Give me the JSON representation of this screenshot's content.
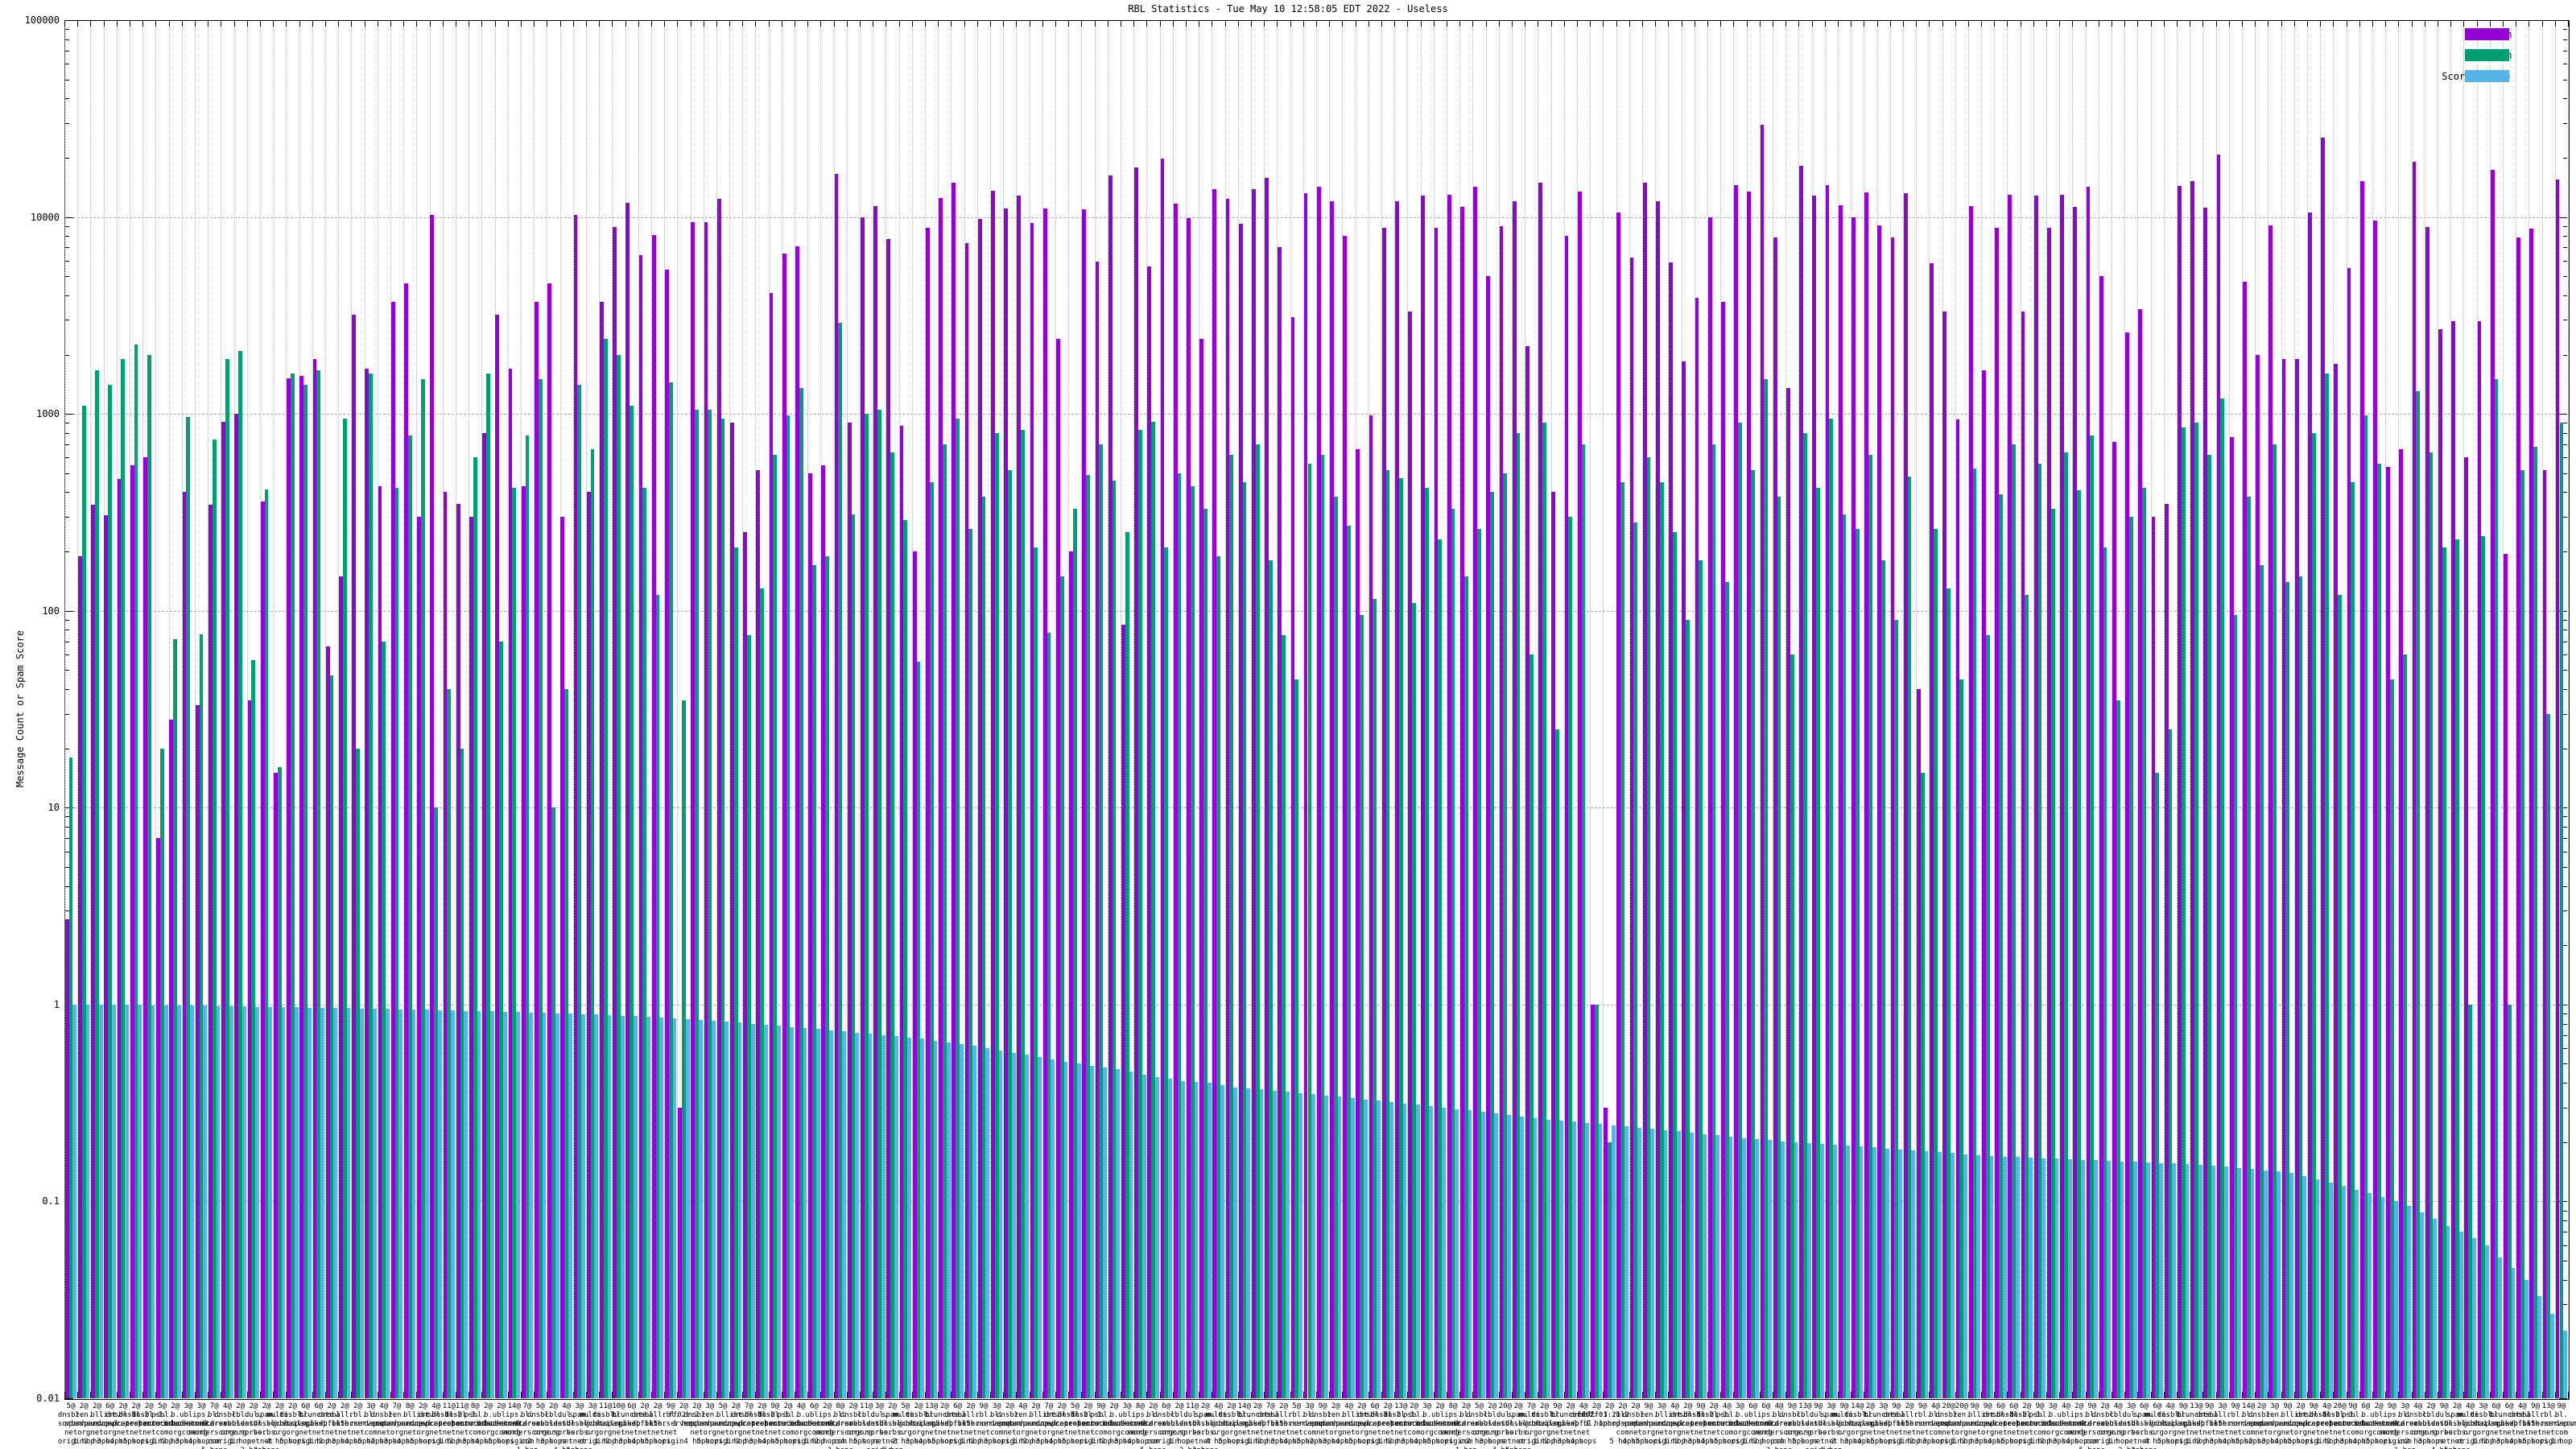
{
  "title": "RBL Statistics - Tue May 10 12:58:05 EDT 2022 - Useless",
  "y_axis": {
    "label": "Message Count or Spam Score",
    "tick_labels": [
      "100000",
      "10000",
      "1000",
      "100",
      "10",
      "1",
      "0.1",
      "0.01"
    ],
    "scale": "log",
    "min": 0.01,
    "max": 100000
  },
  "legend": {
    "position": "top-right",
    "items": [
      {
        "label": "Not Spam",
        "color": "#9400d3"
      },
      {
        "label": "Spam",
        "color": "#009e73"
      },
      {
        "label": "Score (0..1)",
        "color": "#56b4e9"
      }
    ]
  },
  "chart_data": {
    "type": "bar",
    "grid": true,
    "legend_position": "top-right",
    "ylog": true,
    "ylim": [
      0.01,
      100000
    ],
    "ylabel": "Message Count or Spam Score",
    "categories": [
      "5@dnsbl.sorbs.net origin",
      "2@zen.spamhaus.org 1 hop",
      "2@bl.spamcop.net 2 hops",
      "6@list.dnswl.org 3 hops",
      "2@dnsbl-1.uceprotect.net 4 hops",
      "2@dnsbl-2.uceprotect.net 5 hops",
      "2@dnsbl-3.uceprotect.net origin",
      "5@psbl.surriel.com 1 hop",
      "2@b.barracudacentral.org 2 hops",
      "3@ubl.unsubscore.com 3 hops",
      "3@ips.backscatterer.org 4 hops",
      "7@bl.score.senderscore.com 5 hops",
      "4@dnsbl.dronebl.org origin",
      "2@cbl.abuseat.org 1 hop",
      "2@dul.dnsbl.sorbs.net 2 hops",
      "2@spam.dnsbl.sorbs.net 3 hops",
      "2@multi.surbl.org 4 hops",
      "2@dnsbl.justspam.org 5 hops",
      "6@bl.mailspike.net origin",
      "6@truncate.gbudb.net 1 hop",
      "2@dnsbl.spfbl.net 2 hops",
      "2@all.s5h.net 3 hops",
      "2@rbl.interserver.net 4 hops",
      "3@bl.nordspam.com 5 hops",
      "4@dnsbl.sorbs.net 2 hops",
      "7@zen.spamhaus.org 3 hops",
      "8@bl.spamcop.net 4 hops",
      "2@list.dnswl.org 5 hops",
      "4@dnsbl-1.uceprotect.net origin",
      "11@dnsbl-2.uceprotect.net 1 hop",
      "11@dnsbl-3.uceprotect.net 2 hops",
      "8@psbl.surriel.com 3 hops",
      "2@b.barracudacentral.org 4 hops",
      "2@ubl.unsubscore.com 5 hops",
      "14@ips.backscatterer.org origin",
      "7@bl.score.senderscore.com 1 hop",
      "5@dnsbl.dronebl.org 2 hops",
      "2@cbl.abuseat.org 3 hops",
      "4@dul.dnsbl.sorbs.net 4 hops",
      "3@spam.dnsbl.sorbs.net 5 hops",
      "3@multi.surbl.org origin",
      "11@dnsbl.justspam.org 1 hop",
      "10@bl.mailspike.net 2 hops",
      "6@truncate.gbudb.net 3 hops",
      "2@dnsbl.spfbl.net 4 hops",
      "2@all.s5h.net 5 hops",
      "9@rbl.interserver.net origin",
      "2@ff02::2 1 hop",
      "2@dnsbl.sorbs.net 4 hops",
      "3@zen.spamhaus.org 5 hops",
      "5@bl.spamcop.net origin",
      "2@list.dnswl.org 1 hop",
      "7@dnsbl-1.uceprotect.net 2 hops",
      "2@dnsbl-2.uceprotect.net 3 hops",
      "9@dnsbl-3.uceprotect.net 4 hops",
      "2@psbl.surriel.com 5 hops",
      "4@b.barracudacentral.org origin",
      "6@ubl.unsubscore.com 1 hop",
      "2@ips.backscatterer.org 2 hops",
      "8@bl.score.senderscore.com 3 hops",
      "2@dnsbl.dronebl.org 4 hops",
      "11@cbl.abuseat.org 5 hops",
      "3@dul.dnsbl.sorbs.net origin",
      "2@spam.dnsbl.sorbs.net 1 hop",
      "5@multi.surbl.org 2 hops",
      "2@dnsbl.justspam.org 3 hops",
      "13@bl.mailspike.net 4 hops",
      "2@truncate.gbudb.net 5 hops",
      "6@dnsbl.spfbl.net origin",
      "2@all.s5h.net 1 hop",
      "9@rbl.interserver.net 2 hops",
      "3@bl.nordspam.com 3 hops",
      "2@dnsbl.sorbs.net origin",
      "4@zen.spamhaus.org 1 hop",
      "2@bl.spamcop.net 2 hops",
      "7@list.dnswl.org 3 hops",
      "2@dnsbl-1.uceprotect.net 4 hops",
      "5@dnsbl-2.uceprotect.net 5 hops",
      "2@dnsbl-3.uceprotect.net origin",
      "9@psbl.surriel.com 1 hop",
      "2@b.barracudacentral.org 2 hops",
      "3@ubl.unsubscore.com 3 hops",
      "8@ips.backscatterer.org 4 hops",
      "2@bl.score.senderscore.com 5 hops",
      "6@dnsbl.dronebl.org origin",
      "2@cbl.abuseat.org 1 hop",
      "11@dul.dnsbl.sorbs.net 2 hops",
      "2@spam.dnsbl.sorbs.net 3 hops",
      "4@multi.surbl.org 4 hops",
      "2@dnsbl.justspam.org 5 hops",
      "14@bl.mailspike.net origin",
      "2@truncate.gbudb.net 1 hop",
      "7@dnsbl.spfbl.net 2 hops",
      "2@all.s5h.net 3 hops",
      "5@rbl.interserver.net 4 hops",
      "3@bl.nordspam.com 5 hops",
      "9@dnsbl.sorbs.net 2 hops",
      "2@zen.spamhaus.org 3 hops",
      "4@bl.spamcop.net 4 hops",
      "2@list.dnswl.org 5 hops",
      "6@dnsbl-1.uceprotect.net origin",
      "2@dnsbl-2.uceprotect.net 1 hop",
      "13@dnsbl-3.uceprotect.net 2 hops",
      "2@psbl.surriel.com 3 hops",
      "3@b.barracudacentral.org 4 hops",
      "2@ubl.unsubscore.com 5 hops",
      "8@ips.backscatterer.org origin",
      "2@bl.score.senderscore.com 1 hop",
      "5@dnsbl.dronebl.org 2 hops",
      "2@cbl.abuseat.org 3 hops",
      "20@dul.dnsbl.sorbs.net 4 hops",
      "2@spam.dnsbl.sorbs.net 5 hops",
      "7@multi.surbl.org origin",
      "2@dnsbl.justspam.org 1 hop",
      "9@bl.mailspike.net 2 hops",
      "2@truncate.gbudb.net 3 hops",
      "4@dnsbl.spfbl.net 4 hops",
      "2@ff02::1:2 1 hop",
      "2@ff03::1:2 1 hop",
      "2@bl.nordspam.com 5 hops",
      "2@dnsbl.sorbs.net 4 hops",
      "9@zen.spamhaus.org 5 hops",
      "3@bl.spamcop.net origin",
      "4@list.dnswl.org 1 hop",
      "2@dnsbl-1.uceprotect.net 2 hops",
      "9@dnsbl-2.uceprotect.net 3 hops",
      "2@dnsbl-3.uceprotect.net 4 hops",
      "4@psbl.surriel.com 5 hops",
      "3@b.barracudacentral.org origin",
      "6@ubl.unsubscore.com 1 hop",
      "6@ips.backscatterer.org 2 hops",
      "4@bl.score.senderscore.com 3 hops",
      "9@dnsbl.dronebl.org 4 hops",
      "13@cbl.abuseat.org 5 hops",
      "9@dul.dnsbl.sorbs.net origin",
      "3@spam.dnsbl.sorbs.net 1 hop",
      "9@multi.surbl.org 2 hops",
      "14@dnsbl.justspam.org 3 hops",
      "2@bl.mailspike.net 4 hops",
      "3@truncate.gbudb.net 5 hops",
      "9@dnsbl.spfbl.net origin",
      "2@all.s5h.net 1 hop",
      "9@rbl.interserver.net 2 hops",
      "4@bl.nordspam.com 3 hops",
      "20@dnsbl.sorbs.net origin",
      "20@zen.spamhaus.org 1 hop",
      "9@bl.spamcop.net 2 hops",
      "9@list.dnswl.org 3 hops",
      "6@dnsbl-1.uceprotect.net 4 hops",
      "6@dnsbl-2.uceprotect.net 5 hops",
      "2@dnsbl-3.uceprotect.net origin",
      "9@psbl.surriel.com 1 hop",
      "3@b.barracudacentral.org 2 hops",
      "4@ubl.unsubscore.com 3 hops",
      "2@ips.backscatterer.org 4 hops",
      "9@bl.score.senderscore.com 5 hops",
      "2@dnsbl.dronebl.org origin",
      "4@cbl.abuseat.org 1 hop",
      "3@dul.dnsbl.sorbs.net 2 hops",
      "6@spam.dnsbl.sorbs.net 3 hops",
      "6@multi.surbl.org 4 hops",
      "4@dnsbl.justspam.org 5 hops",
      "9@bl.mailspike.net origin",
      "13@truncate.gbudb.net 1 hop",
      "9@dnsbl.spfbl.net 2 hops",
      "3@all.s5h.net 3 hops",
      "9@rbl.interserver.net 4 hops",
      "14@bl.nordspam.com 5 hops",
      "2@dnsbl.sorbs.net 2 hops",
      "3@zen.spamhaus.org 3 hops",
      "9@bl.spamcop.net 4 hops",
      "2@list.dnswl.org 5 hops",
      "9@dnsbl-1.uceprotect.net origin",
      "4@dnsbl-2.uceprotect.net 1 hop",
      "20@dnsbl-3.uceprotect.net 2 hops",
      "9@psbl.surriel.com 3 hops",
      "6@b.barracudacentral.org 4 hops",
      "2@ubl.unsubscore.com 5 hops",
      "9@ips.backscatterer.org origin",
      "3@bl.score.senderscore.com 1 hop",
      "4@dnsbl.dronebl.org 2 hops",
      "2@cbl.abuseat.org 3 hops",
      "9@dul.dnsbl.sorbs.net 4 hops",
      "2@spam.dnsbl.sorbs.net 5 hops",
      "4@multi.surbl.org origin",
      "3@dnsbl.justspam.org 1 hop",
      "6@bl.mailspike.net 2 hops",
      "6@truncate.gbudb.net 3 hops",
      "4@dnsbl.spfbl.net 4 hops",
      "9@all.s5h.net 5 hops",
      "13@rbl.interserver.net origin",
      "9@bl.nordspam.com 1 hop"
    ],
    "series": [
      {
        "name": "Not Spam",
        "color": "#9400d3",
        "values": [
          2.7,
          190,
          345,
          305,
          465,
          550,
          600,
          7,
          28,
          400,
          33,
          345,
          910,
          1000,
          35,
          360,
          15,
          1520,
          1560,
          1900,
          66,
          150,
          3200,
          1700,
          430,
          3700,
          4600,
          300,
          10200,
          400,
          350,
          300,
          800,
          3200,
          1700,
          430,
          3700,
          4600,
          300,
          10200,
          400,
          3700,
          8900,
          11800,
          6400,
          8100,
          5400,
          0.3,
          9400,
          9400,
          12400,
          900,
          250,
          520,
          4100,
          6500,
          7100,
          500,
          550,
          16500,
          900,
          10000,
          11400,
          7700,
          870,
          200,
          8800,
          12500,
          15000,
          7400,
          9800,
          13600,
          11000,
          12900,
          9300,
          11000,
          2400,
          200,
          10900,
          5950,
          16200,
          85,
          17900,
          5600,
          19800,
          11700,
          9900,
          2400,
          13800,
          12400,
          9200,
          13900,
          15800,
          7000,
          3100,
          13200,
          14300,
          12000,
          8000,
          660,
          980,
          8800,
          12000,
          3300,
          12800,
          8800,
          13000,
          11300,
          14200,
          5000,
          9000,
          12000,
          2200,
          15000,
          400,
          8000,
          13500,
          1,
          0.3,
          10500,
          6200,
          15000,
          12000,
          5900,
          1850,
          3900,
          10000,
          3700,
          14500,
          13500,
          29500,
          7900,
          1350,
          18200,
          12800,
          14500,
          11500,
          10000,
          13300,
          9100,
          7900,
          13200,
          40,
          5800,
          3300,
          940,
          11400,
          1670,
          8800,
          13000,
          3300,
          12800,
          8800,
          13000,
          11300,
          14200,
          5000,
          720,
          2600,
          3400,
          300,
          350,
          14400,
          15200,
          11100,
          20800,
          760,
          4700,
          2000,
          9100,
          1900,
          1900,
          10500,
          25200,
          1800,
          5500,
          15200,
          9600,
          540,
          660,
          19000,
          8900,
          2700,
          2950,
          600,
          2950,
          17400,
          195,
          7900,
          8700,
          520,
          15500
        ]
      },
      {
        "name": "Spam",
        "color": "#009e73",
        "values": [
          18,
          1100,
          1670,
          1400,
          1900,
          2250,
          2000,
          20,
          72,
          960,
          76,
          740,
          1900,
          2080,
          56,
          415,
          16,
          1600,
          1400,
          1670,
          47,
          950,
          20,
          1600,
          70,
          420,
          780,
          1500,
          10,
          40,
          20,
          600,
          1600,
          70,
          420,
          780,
          1500,
          10,
          40,
          1400,
          660,
          2400,
          2000,
          1100,
          420,
          120,
          1450,
          35,
          1050,
          1050,
          950,
          210,
          75,
          130,
          620,
          980,
          1350,
          170,
          190,
          2900,
          310,
          1000,
          1050,
          640,
          290,
          55,
          450,
          700,
          950,
          260,
          380,
          800,
          520,
          830,
          210,
          77,
          150,
          330,
          490,
          700,
          460,
          250,
          830,
          910,
          210,
          500,
          430,
          330,
          190,
          620,
          450,
          700,
          180,
          75,
          45,
          560,
          620,
          380,
          270,
          95,
          115,
          520,
          470,
          110,
          420,
          230,
          330,
          150,
          260,
          400,
          500,
          800,
          60,
          900,
          25,
          300,
          700,
          1,
          0.2,
          450,
          280,
          600,
          450,
          250,
          90,
          180,
          700,
          140,
          900,
          520,
          1500,
          380,
          60,
          800,
          420,
          950,
          310,
          260,
          620,
          180,
          90,
          480,
          15,
          260,
          130,
          45,
          530,
          75,
          390,
          700,
          120,
          560,
          330,
          640,
          410,
          780,
          210,
          35,
          300,
          420,
          15,
          25,
          850,
          900,
          620,
          1200,
          95,
          380,
          170,
          700,
          140,
          150,
          800,
          1600,
          120,
          450,
          980,
          560,
          45,
          60,
          1300,
          640,
          210,
          230,
          1,
          240,
          1500,
          1,
          520,
          680,
          30,
          900
        ]
      },
      {
        "name": "Score (0..1)",
        "color": "#56b4e9",
        "values": [
          1.0,
          1.0,
          1.0,
          0.998,
          0.997,
          0.995,
          0.993,
          0.991,
          0.989,
          0.987,
          0.985,
          0.982,
          0.98,
          0.978,
          0.975,
          0.973,
          0.97,
          0.968,
          0.966,
          0.964,
          0.962,
          0.96,
          0.957,
          0.954,
          0.951,
          0.948,
          0.945,
          0.942,
          0.939,
          0.935,
          0.93,
          0.926,
          0.922,
          0.918,
          0.914,
          0.91,
          0.906,
          0.902,
          0.898,
          0.894,
          0.89,
          0.884,
          0.878,
          0.872,
          0.866,
          0.86,
          0.852,
          0.845,
          0.838,
          0.83,
          0.82,
          0.81,
          0.8,
          0.79,
          0.78,
          0.77,
          0.76,
          0.75,
          0.74,
          0.73,
          0.72,
          0.71,
          0.7,
          0.69,
          0.68,
          0.67,
          0.655,
          0.64,
          0.63,
          0.615,
          0.6,
          0.585,
          0.57,
          0.555,
          0.54,
          0.525,
          0.51,
          0.5,
          0.49,
          0.48,
          0.47,
          0.455,
          0.44,
          0.43,
          0.42,
          0.41,
          0.405,
          0.4,
          0.39,
          0.38,
          0.375,
          0.37,
          0.365,
          0.36,
          0.355,
          0.35,
          0.345,
          0.34,
          0.335,
          0.33,
          0.325,
          0.32,
          0.315,
          0.31,
          0.305,
          0.3,
          0.295,
          0.29,
          0.285,
          0.28,
          0.275,
          0.27,
          0.265,
          0.26,
          0.257,
          0.254,
          0.25,
          0.247,
          0.244,
          0.24,
          0.237,
          0.234,
          0.23,
          0.227,
          0.224,
          0.22,
          0.217,
          0.214,
          0.21,
          0.208,
          0.205,
          0.202,
          0.2,
          0.198,
          0.196,
          0.194,
          0.192,
          0.19,
          0.188,
          0.186,
          0.184,
          0.182,
          0.18,
          0.178,
          0.176,
          0.174,
          0.172,
          0.17,
          0.169,
          0.168,
          0.167,
          0.166,
          0.165,
          0.164,
          0.163,
          0.162,
          0.161,
          0.16,
          0.159,
          0.158,
          0.157,
          0.156,
          0.155,
          0.154,
          0.152,
          0.15,
          0.148,
          0.146,
          0.144,
          0.142,
          0.14,
          0.135,
          0.13,
          0.125,
          0.12,
          0.115,
          0.11,
          0.105,
          0.1,
          0.095,
          0.088,
          0.082,
          0.075,
          0.07,
          0.065,
          0.06,
          0.052,
          0.046,
          0.04,
          0.033,
          0.027,
          0.022
        ]
      }
    ]
  }
}
